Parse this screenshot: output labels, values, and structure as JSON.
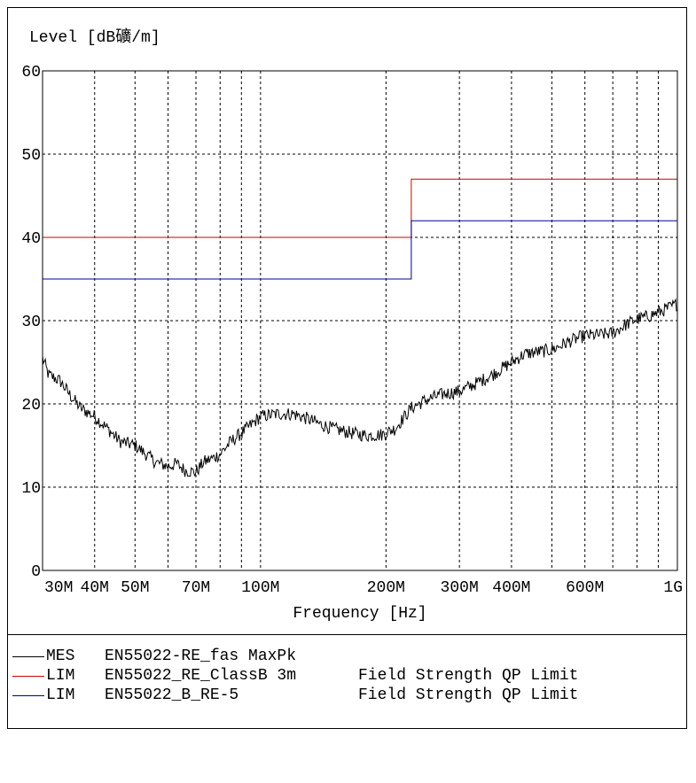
{
  "chart_data": {
    "type": "line",
    "ylabel": "Level [dB礦/m]",
    "xlabel": "Frequency [Hz]",
    "x_scale": "log",
    "xlim_hz": [
      30000000,
      1000000000
    ],
    "ylim": [
      0,
      60
    ],
    "y_ticks": [
      0,
      10,
      20,
      30,
      40,
      50,
      60
    ],
    "x_ticks": [
      {
        "hz": 30000000,
        "label": "30M"
      },
      {
        "hz": 40000000,
        "label": "40M"
      },
      {
        "hz": 50000000,
        "label": "50M"
      },
      {
        "hz": 70000000,
        "label": "70M"
      },
      {
        "hz": 100000000,
        "label": "100M"
      },
      {
        "hz": 200000000,
        "label": "200M"
      },
      {
        "hz": 300000000,
        "label": "300M"
      },
      {
        "hz": 400000000,
        "label": "400M"
      },
      {
        "hz": 600000000,
        "label": "600M"
      },
      {
        "hz": 1000000000,
        "label": "1G"
      }
    ],
    "x_gridlines_hz": [
      40000000,
      50000000,
      60000000,
      70000000,
      80000000,
      90000000,
      100000000,
      200000000,
      300000000,
      400000000,
      500000000,
      600000000,
      700000000,
      800000000,
      900000000
    ],
    "grid": true,
    "legend_position": "bottom",
    "series": [
      {
        "name": "EN55022-RE_fas MaxPk",
        "tag": "MES",
        "color": "#000000",
        "x_hz": [
          30000000,
          31000000,
          33000000,
          35000000,
          37000000,
          40000000,
          43000000,
          46000000,
          50000000,
          53000000,
          56000000,
          60000000,
          63000000,
          66000000,
          70000000,
          73000000,
          77000000,
          80000000,
          85000000,
          90000000,
          95000000,
          100000000,
          110000000,
          120000000,
          130000000,
          140000000,
          150000000,
          165000000,
          180000000,
          195000000,
          210000000,
          230000000,
          250000000,
          275000000,
          300000000,
          330000000,
          360000000,
          400000000,
          430000000,
          470000000,
          500000000,
          550000000,
          600000000,
          650000000,
          700000000,
          750000000,
          800000000,
          850000000,
          900000000,
          950000000,
          1000000000
        ],
        "y": [
          25.5,
          23.5,
          22.8,
          21,
          19.5,
          18.5,
          17,
          15.5,
          15,
          14,
          13,
          12.5,
          12.8,
          12,
          11.8,
          13,
          13.5,
          14,
          15.5,
          16.5,
          17.5,
          18.5,
          18.8,
          18.8,
          18.2,
          17.5,
          17,
          16.5,
          16.2,
          16.3,
          17,
          19.5,
          20.5,
          21.2,
          21.5,
          22.5,
          23.5,
          25,
          26,
          26.3,
          26.5,
          27.5,
          28.2,
          28.3,
          28.5,
          29.5,
          30.2,
          30.5,
          31,
          31.5,
          32
        ]
      },
      {
        "name": "EN55022_RE_ClassB 3m",
        "tag": "LIM",
        "description": "Field Strength QP Limit",
        "color": "#cc0000",
        "x_hz": [
          30000000,
          230000000,
          230000000,
          1000000000
        ],
        "y": [
          40,
          40,
          47,
          47
        ]
      },
      {
        "name": "EN55022_B_RE-5",
        "tag": "LIM",
        "description": "Field Strength QP Limit",
        "color": "#000099",
        "x_hz": [
          30000000,
          230000000,
          230000000,
          1000000000
        ],
        "y": [
          35,
          35,
          42,
          42
        ]
      }
    ]
  }
}
